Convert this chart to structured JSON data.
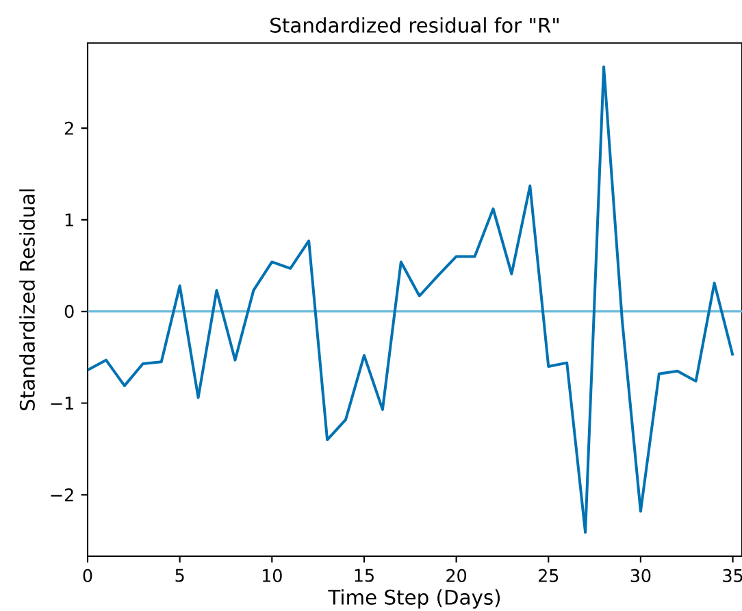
{
  "chart_data": {
    "type": "line",
    "title": "Standardized residual for \"R\"",
    "xlabel": "Time Step (Days)",
    "ylabel": "Standardized Residual",
    "x": [
      0,
      1,
      2,
      3,
      4,
      5,
      6,
      7,
      8,
      9,
      10,
      11,
      12,
      13,
      14,
      15,
      16,
      17,
      18,
      19,
      20,
      21,
      22,
      23,
      24,
      25,
      26,
      27,
      28,
      29,
      30,
      31,
      32,
      33,
      34,
      35
    ],
    "series": [
      {
        "color": "#0072b2",
        "values": [
          -0.64,
          -0.53,
          -0.81,
          -0.57,
          -0.55,
          0.28,
          -0.94,
          0.23,
          -0.53,
          0.23,
          0.54,
          0.47,
          0.77,
          -1.4,
          -1.18,
          -0.48,
          -1.07,
          0.54,
          0.17,
          0.39,
          0.6,
          0.6,
          1.12,
          0.41,
          1.37,
          -0.6,
          -0.56,
          -2.41,
          2.67,
          -0.1,
          -2.18,
          -0.68,
          -0.65,
          -0.76,
          0.31,
          -0.48
        ]
      }
    ],
    "xlim": [
      0,
      35.5
    ],
    "ylim": [
      -2.67,
      2.93
    ],
    "xticks": [
      0,
      5,
      10,
      15,
      20,
      25,
      30,
      35
    ],
    "yticks": [
      {
        "value": -2,
        "label": "−2"
      },
      {
        "value": -1,
        "label": "−1"
      },
      0,
      1,
      2
    ],
    "ref_lines": [
      {
        "axis": "y",
        "value": 0,
        "color": "#6bbbdc"
      }
    ],
    "grid": false
  }
}
